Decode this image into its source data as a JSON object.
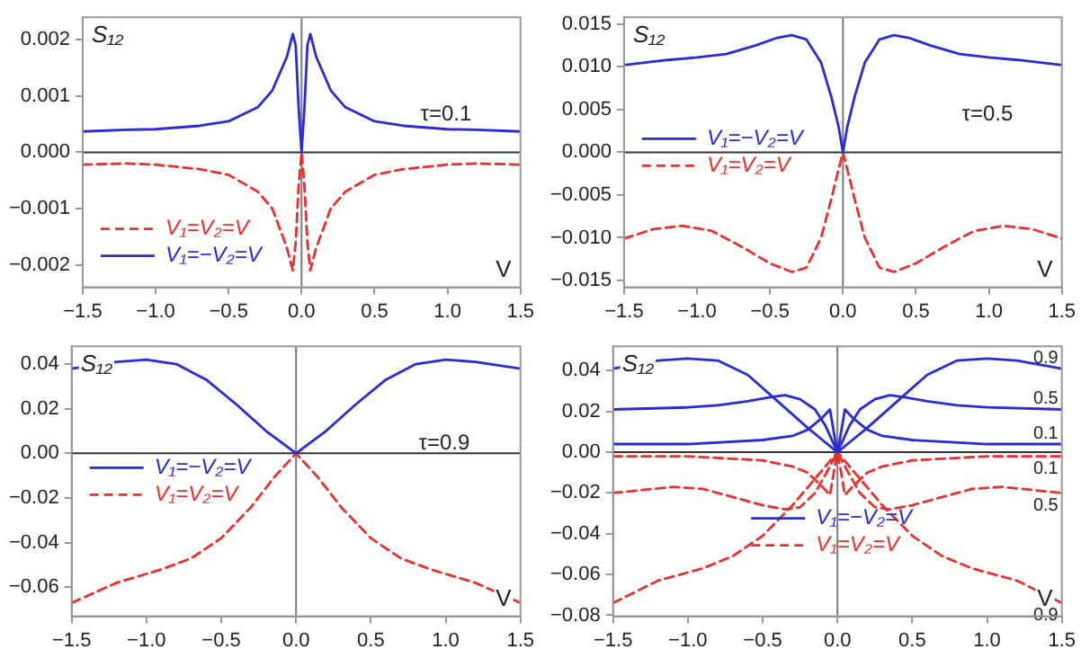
{
  "chart_data": [
    {
      "type": "line",
      "ylabel": "S₁₂",
      "xlabel": "V",
      "annotations": [
        "τ=0.1"
      ],
      "legend": "bottom left",
      "marker": "none",
      "xlim": [
        -1.5,
        1.5
      ],
      "xticks": [
        {
          "value": -1.5,
          "label": "−1.5"
        },
        {
          "value": -1,
          "label": "−1.0"
        },
        {
          "value": -0.5,
          "label": "−0.5"
        },
        {
          "value": 0,
          "label": "0.0"
        },
        {
          "value": 0.5,
          "label": "0.5"
        },
        {
          "value": 1,
          "label": "1.0"
        },
        {
          "value": 1.5,
          "label": "1.5"
        }
      ],
      "ylim": [
        -0.0024,
        0.0024
      ],
      "yticks": [
        {
          "value": -0.002,
          "label": "−0.002"
        },
        {
          "value": -0.001,
          "label": "−0.001"
        },
        {
          "value": 0,
          "label": "0.000"
        },
        {
          "value": 0.001,
          "label": "0.001"
        },
        {
          "value": 0.002,
          "label": "0.002"
        }
      ],
      "ref_lines": [
        {
          "axis": "x",
          "value": 0,
          "color": "#7a7a7a"
        },
        {
          "axis": "y",
          "value": 0,
          "color": "#333333"
        }
      ],
      "series": [
        {
          "name": "V₁=V₂=V",
          "color": "#e8302f",
          "line_style": "dashed",
          "x": [
            -1.5,
            -1.2,
            -1,
            -0.7,
            -0.5,
            -0.3,
            -0.2,
            -0.1,
            -0.06,
            -0.04,
            -0.02,
            0,
            0.02,
            0.04,
            0.06,
            0.1,
            0.2,
            0.3,
            0.5,
            0.7,
            1,
            1.2,
            1.5
          ],
          "values": [
            -0.00022,
            -0.0002,
            -0.00022,
            -0.0003,
            -0.0004,
            -0.0007,
            -0.001,
            -0.0017,
            -0.0021,
            -0.0016,
            -0.0006,
            0,
            -0.0006,
            -0.0016,
            -0.0021,
            -0.0017,
            -0.001,
            -0.0007,
            -0.0004,
            -0.0003,
            -0.00022,
            -0.0002,
            -0.00022
          ]
        },
        {
          "name": "V₁=−V₂=V",
          "color": "#2b2bd6",
          "line_style": "solid",
          "x": [
            -1.5,
            -1.2,
            -1,
            -0.7,
            -0.5,
            -0.3,
            -0.2,
            -0.1,
            -0.06,
            -0.04,
            -0.02,
            0,
            0.02,
            0.04,
            0.06,
            0.1,
            0.2,
            0.3,
            0.5,
            0.7,
            1,
            1.2,
            1.5
          ],
          "values": [
            0.00037,
            0.0004,
            0.00041,
            0.00047,
            0.00055,
            0.0008,
            0.0011,
            0.0017,
            0.0021,
            0.0019,
            0.0008,
            0,
            0.0008,
            0.0019,
            0.0021,
            0.0017,
            0.0011,
            0.0008,
            0.00055,
            0.00047,
            0.00041,
            0.0004,
            0.00037
          ]
        }
      ]
    },
    {
      "type": "line",
      "ylabel": "S₁₂",
      "xlabel": "V",
      "annotations": [
        "τ=0.5"
      ],
      "legend": "left",
      "marker": "none",
      "xlim": [
        -1.5,
        1.5
      ],
      "xticks": [
        {
          "value": -1.5,
          "label": "−1.5"
        },
        {
          "value": -1,
          "label": "−1.0"
        },
        {
          "value": -0.5,
          "label": "−0.5"
        },
        {
          "value": 0,
          "label": "0.0"
        },
        {
          "value": 0.5,
          "label": "0.5"
        },
        {
          "value": 1,
          "label": "1.0"
        },
        {
          "value": 1.5,
          "label": "1.5"
        }
      ],
      "ylim": [
        -0.0158,
        0.0158
      ],
      "yticks": [
        {
          "value": -0.015,
          "label": "−0.015"
        },
        {
          "value": -0.01,
          "label": "−0.010"
        },
        {
          "value": -0.005,
          "label": "−0.005"
        },
        {
          "value": 0,
          "label": "0.000"
        },
        {
          "value": 0.005,
          "label": "0.005"
        },
        {
          "value": 0.01,
          "label": "0.010"
        },
        {
          "value": 0.015,
          "label": "0.015"
        }
      ],
      "ref_lines": [
        {
          "axis": "x",
          "value": 0,
          "color": "#7a7a7a"
        },
        {
          "axis": "y",
          "value": 0,
          "color": "#333333"
        }
      ],
      "series": [
        {
          "name": "V₁=−V₂=V",
          "color": "#2b2bd6",
          "line_style": "solid",
          "x": [
            -1.5,
            -1.2,
            -1,
            -0.8,
            -0.6,
            -0.45,
            -0.35,
            -0.25,
            -0.15,
            -0.08,
            -0.03,
            0,
            0.03,
            0.08,
            0.15,
            0.25,
            0.35,
            0.45,
            0.6,
            0.8,
            1,
            1.2,
            1.5
          ],
          "values": [
            0.0102,
            0.0108,
            0.0111,
            0.0115,
            0.0125,
            0.0134,
            0.0137,
            0.0132,
            0.0105,
            0.0065,
            0.003,
            0,
            0.003,
            0.0065,
            0.0105,
            0.0132,
            0.0137,
            0.0134,
            0.0125,
            0.0115,
            0.0111,
            0.0108,
            0.0102
          ]
        },
        {
          "name": "V₁=V₂=V",
          "color": "#e8302f",
          "line_style": "dashed",
          "x": [
            -1.5,
            -1.3,
            -1.1,
            -0.9,
            -0.7,
            -0.5,
            -0.35,
            -0.25,
            -0.15,
            -0.08,
            -0.03,
            0,
            0.03,
            0.08,
            0.15,
            0.25,
            0.35,
            0.5,
            0.7,
            0.9,
            1.1,
            1.3,
            1.5
          ],
          "values": [
            -0.0101,
            -0.009,
            -0.0086,
            -0.0092,
            -0.011,
            -0.013,
            -0.014,
            -0.0135,
            -0.01,
            -0.0055,
            -0.002,
            0,
            -0.002,
            -0.0055,
            -0.01,
            -0.0135,
            -0.014,
            -0.013,
            -0.011,
            -0.0092,
            -0.0086,
            -0.009,
            -0.0101
          ]
        }
      ]
    },
    {
      "type": "line",
      "ylabel": "S₁₂",
      "xlabel": "V",
      "annotations": [
        "τ=0.9"
      ],
      "legend": "left",
      "marker": "none",
      "xlim": [
        -1.5,
        1.5
      ],
      "xticks": [
        {
          "value": -1.5,
          "label": "−1.5"
        },
        {
          "value": -1,
          "label": "−1.0"
        },
        {
          "value": -0.5,
          "label": "−0.5"
        },
        {
          "value": 0,
          "label": "0.0"
        },
        {
          "value": 0.5,
          "label": "0.5"
        },
        {
          "value": 1,
          "label": "1.0"
        },
        {
          "value": 1.5,
          "label": "1.5"
        }
      ],
      "ylim": [
        -0.073,
        0.048
      ],
      "yticks": [
        {
          "value": -0.06,
          "label": "−0.06"
        },
        {
          "value": -0.04,
          "label": "−0.04"
        },
        {
          "value": -0.02,
          "label": "−0.02"
        },
        {
          "value": 0,
          "label": "0.00"
        },
        {
          "value": 0.02,
          "label": "0.02"
        },
        {
          "value": 0.04,
          "label": "0.04"
        }
      ],
      "ref_lines": [
        {
          "axis": "x",
          "value": 0,
          "color": "#7a7a7a"
        },
        {
          "axis": "y",
          "value": 0,
          "color": "#333333"
        }
      ],
      "series": [
        {
          "name": "V₁=−V₂=V",
          "color": "#2b2bd6",
          "line_style": "solid",
          "x": [
            -1.5,
            -1.2,
            -1,
            -0.8,
            -0.6,
            -0.4,
            -0.2,
            -0.1,
            0,
            0.1,
            0.2,
            0.4,
            0.6,
            0.8,
            1,
            1.2,
            1.5
          ],
          "values": [
            0.038,
            0.041,
            0.042,
            0.04,
            0.033,
            0.022,
            0.01,
            0.005,
            0,
            0.005,
            0.01,
            0.022,
            0.033,
            0.04,
            0.042,
            0.041,
            0.038
          ]
        },
        {
          "name": "V₁=V₂=V",
          "color": "#e8302f",
          "line_style": "dashed",
          "x": [
            -1.5,
            -1.2,
            -0.9,
            -0.7,
            -0.5,
            -0.3,
            -0.15,
            0,
            0.15,
            0.3,
            0.5,
            0.7,
            0.9,
            1.2,
            1.5
          ],
          "values": [
            -0.067,
            -0.058,
            -0.052,
            -0.047,
            -0.038,
            -0.024,
            -0.011,
            0,
            -0.011,
            -0.024,
            -0.038,
            -0.047,
            -0.052,
            -0.058,
            -0.067
          ]
        }
      ]
    },
    {
      "type": "line",
      "ylabel": "S₁₂",
      "xlabel": "V",
      "annotations": [
        "0.9",
        "0.5",
        "0.1",
        "0.1",
        "0.5",
        "0.9"
      ],
      "legend": "bottom",
      "marker": "none",
      "xlim": [
        -1.5,
        1.5
      ],
      "xticks": [
        {
          "value": -1.5,
          "label": "−1.5"
        },
        {
          "value": -1,
          "label": "−1.0"
        },
        {
          "value": -0.5,
          "label": "−0.5"
        },
        {
          "value": 0,
          "label": "0.0"
        },
        {
          "value": 0.5,
          "label": "0.5"
        },
        {
          "value": 1,
          "label": "1.0"
        },
        {
          "value": 1.5,
          "label": "1.5"
        }
      ],
      "ylim": [
        -0.0805,
        0.052
      ],
      "yticks": [
        {
          "value": -0.08,
          "label": "−0.08"
        },
        {
          "value": -0.06,
          "label": "−0.06"
        },
        {
          "value": -0.04,
          "label": "−0.04"
        },
        {
          "value": -0.02,
          "label": "−0.02"
        },
        {
          "value": 0,
          "label": "0.00"
        },
        {
          "value": 0.02,
          "label": "0.02"
        },
        {
          "value": 0.04,
          "label": "0.04"
        }
      ],
      "ref_lines": [
        {
          "axis": "x",
          "value": 0,
          "color": "#7a7a7a"
        },
        {
          "axis": "y",
          "value": 0,
          "color": "#333333"
        }
      ],
      "series": [
        {
          "name": "V₁=−V₂=V",
          "color": "#2b2bd6",
          "line_style": "solid",
          "x": [
            -1.5,
            -1.2,
            -1,
            -0.8,
            -0.6,
            -0.4,
            -0.2,
            -0.1,
            0,
            0.1,
            0.2,
            0.4,
            0.6,
            0.8,
            1,
            1.2,
            1.5
          ],
          "values": [
            0.041,
            0.045,
            0.046,
            0.045,
            0.038,
            0.025,
            0.012,
            0.006,
            0,
            0.006,
            0.012,
            0.025,
            0.038,
            0.045,
            0.046,
            0.045,
            0.041
          ]
        },
        {
          "color": "#2b2bd6",
          "line_style": "solid",
          "x": [
            -1.5,
            -1,
            -0.8,
            -0.6,
            -0.45,
            -0.35,
            -0.25,
            -0.15,
            -0.08,
            0,
            0.08,
            0.15,
            0.25,
            0.35,
            0.45,
            0.6,
            0.8,
            1,
            1.5
          ],
          "values": [
            0.021,
            0.022,
            0.023,
            0.025,
            0.027,
            0.028,
            0.026,
            0.021,
            0.013,
            0,
            0.013,
            0.021,
            0.026,
            0.028,
            0.027,
            0.025,
            0.023,
            0.022,
            0.021
          ]
        },
        {
          "color": "#2b2bd6",
          "line_style": "solid",
          "x": [
            -1.5,
            -1,
            -0.5,
            -0.3,
            -0.2,
            -0.1,
            -0.05,
            -0.02,
            0,
            0.02,
            0.05,
            0.1,
            0.2,
            0.3,
            0.5,
            1,
            1.5
          ],
          "values": [
            0.004,
            0.004,
            0.006,
            0.008,
            0.011,
            0.017,
            0.021,
            0.008,
            0,
            0.008,
            0.021,
            0.017,
            0.011,
            0.008,
            0.006,
            0.004,
            0.004
          ]
        },
        {
          "color": "#e8302f",
          "line_style": "dashed",
          "x": [
            -1.5,
            -1,
            -0.5,
            -0.3,
            -0.2,
            -0.1,
            -0.05,
            -0.02,
            0,
            0.02,
            0.05,
            0.1,
            0.2,
            0.3,
            0.5,
            1,
            1.5
          ],
          "values": [
            -0.002,
            -0.002,
            -0.004,
            -0.007,
            -0.01,
            -0.017,
            -0.021,
            -0.008,
            0,
            -0.008,
            -0.021,
            -0.017,
            -0.01,
            -0.007,
            -0.004,
            -0.002,
            -0.002
          ]
        },
        {
          "color": "#e8302f",
          "line_style": "dashed",
          "x": [
            -1.5,
            -1.1,
            -0.9,
            -0.7,
            -0.5,
            -0.35,
            -0.25,
            -0.15,
            -0.08,
            0,
            0.08,
            0.15,
            0.25,
            0.35,
            0.5,
            0.7,
            0.9,
            1.1,
            1.5
          ],
          "values": [
            -0.02,
            -0.017,
            -0.018,
            -0.022,
            -0.026,
            -0.028,
            -0.027,
            -0.02,
            -0.011,
            0,
            -0.011,
            -0.02,
            -0.027,
            -0.028,
            -0.026,
            -0.022,
            -0.018,
            -0.017,
            -0.02
          ]
        },
        {
          "name": "V₁=V₂=V",
          "color": "#e8302f",
          "line_style": "dashed",
          "x": [
            -1.5,
            -1.2,
            -0.9,
            -0.7,
            -0.5,
            -0.3,
            -0.15,
            0,
            0.15,
            0.3,
            0.5,
            0.7,
            0.9,
            1.2,
            1.5
          ],
          "values": [
            -0.074,
            -0.063,
            -0.057,
            -0.051,
            -0.041,
            -0.026,
            -0.013,
            0,
            -0.013,
            -0.026,
            -0.041,
            -0.051,
            -0.057,
            -0.063,
            -0.074
          ]
        }
      ]
    }
  ]
}
